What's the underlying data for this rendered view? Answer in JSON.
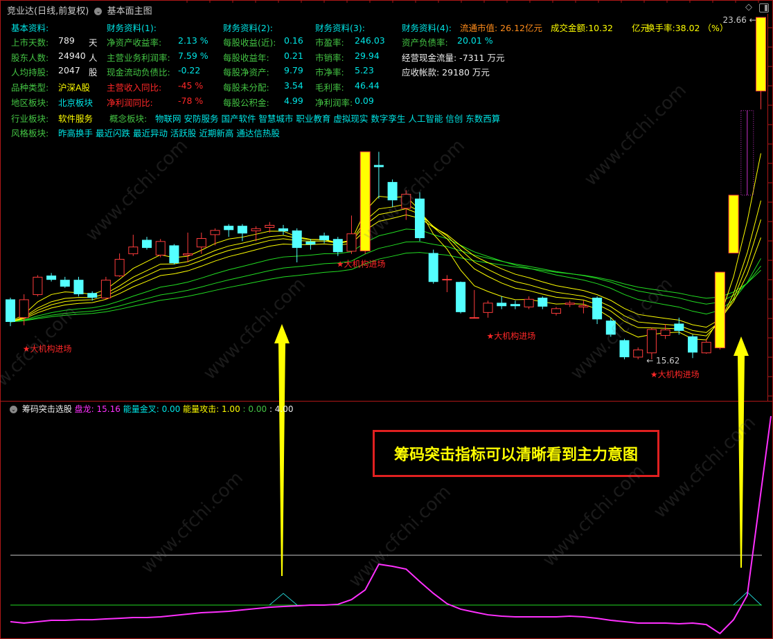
{
  "header": {
    "stock_title": "竞业达(日线,前复权)",
    "template_name": "基本面主图",
    "diamond_icon": "diamond-icon",
    "panel_icon": "panel-toggle-icon"
  },
  "info": {
    "basic": {
      "header": "基本资料:",
      "rows": [
        {
          "label": "上市天数:",
          "value": "789",
          "unit": "天"
        },
        {
          "label": "股东人数:",
          "value": "24940",
          "unit": "人"
        },
        {
          "label": "人均持股:",
          "value": "2047",
          "unit": "股"
        },
        {
          "label": "品种类型:",
          "value": "沪深A股",
          "unit": ""
        },
        {
          "label": "地区板块:",
          "value": "北京板块",
          "unit": ""
        }
      ]
    },
    "fin1": {
      "header": "财务资料(1):",
      "rows": [
        {
          "label": "净资产收益率:",
          "value": "2.13 %"
        },
        {
          "label": "主营业务利润率:",
          "value": "7.59 %"
        },
        {
          "label": "现金流动负债比:",
          "value": "-0.22"
        },
        {
          "label": "主营收入同比:",
          "value": "-45 %"
        },
        {
          "label": "净利润同比:",
          "value": "-78 %"
        }
      ]
    },
    "fin2": {
      "header": "财务资料(2):",
      "rows": [
        {
          "label": "每股收益(近):",
          "value": "0.16"
        },
        {
          "label": "每股收益年:",
          "value": "0.21"
        },
        {
          "label": "每股净资产:",
          "value": "9.79"
        },
        {
          "label": "每股未分配:",
          "value": "3.54"
        },
        {
          "label": "每股公积金:",
          "value": "4.99"
        }
      ]
    },
    "fin3": {
      "header": "财务资料(3):",
      "rows": [
        {
          "label": "市盈率:",
          "value": "246.03"
        },
        {
          "label": "市销率:",
          "value": "29.94"
        },
        {
          "label": "市净率:",
          "value": "5.23"
        },
        {
          "label": "毛利率:",
          "value": "46.44"
        },
        {
          "label": "净利润率:",
          "value": "0.09"
        }
      ]
    },
    "fin4": {
      "header": "财务资料(4):",
      "debt_ratio_label": "资产负债率:",
      "debt_ratio_value": "20.01 %",
      "cashflow": "经营现金流量: -7311 万元",
      "receivables": "应收帐款: 29180 万元"
    },
    "market": {
      "float_cap": "流通市值: 26.12亿元",
      "turnover_amount": "成交金额:10.32",
      "turnover_unit": "亿元",
      "turnover_rate": "换手率:38.02 （%）"
    },
    "industry_label": "行业板块:",
    "industry_value": "软件服务",
    "concept_label": "概念板块:",
    "concept_value": "物联网 安防服务 国产软件 智慧城市 职业教育 虚拟现实 数字孪生 人工智能 信创 东数西算",
    "style_label": "风格板块:",
    "style_value": "昨高换手 最近闪跌 最近异动 活跃股 近期新高 通达信热股"
  },
  "chart_data": [
    {
      "type": "candlestick",
      "ylim": [
        14.66,
        24.07
      ],
      "colors": {
        "up": "#ff3c3c",
        "down": "#54ffff",
        "limit_up": "#ffff00",
        "ma_short": "#ffff00",
        "ma_long": "#22dd22"
      },
      "ema_periods_short": [
        5,
        8,
        10,
        13
      ],
      "ema_periods_long": [
        21,
        30,
        40
      ],
      "candles": [
        {
          "o": 17.03,
          "c": 16.5,
          "h": 17.07,
          "l": 16.4
        },
        {
          "o": 16.61,
          "c": 17.03,
          "h": 17.15,
          "l": 16.42
        },
        {
          "o": 17.15,
          "c": 17.56,
          "h": 17.6,
          "l": 17.1
        },
        {
          "o": 17.59,
          "c": 17.49,
          "h": 17.65,
          "l": 17.45
        },
        {
          "o": 17.49,
          "c": 17.33,
          "h": 17.56,
          "l": 17.3
        },
        {
          "o": 17.49,
          "c": 17.15,
          "h": 17.56,
          "l": 17.1
        },
        {
          "o": 17.18,
          "c": 17.07,
          "h": 17.22,
          "l": 17.0
        },
        {
          "o": 17.07,
          "c": 17.49,
          "h": 17.56,
          "l": 17.03
        },
        {
          "o": 17.59,
          "c": 17.98,
          "h": 18.11,
          "l": 17.56
        },
        {
          "o": 18.11,
          "c": 18.27,
          "h": 18.55,
          "l": 18.05
        },
        {
          "o": 18.43,
          "c": 18.24,
          "h": 18.5,
          "l": 18.2
        },
        {
          "o": 18.08,
          "c": 18.4,
          "h": 18.45,
          "l": 18.02
        },
        {
          "o": 18.3,
          "c": 17.88,
          "h": 18.33,
          "l": 17.85
        },
        {
          "o": 18.08,
          "c": 18.11,
          "h": 18.6,
          "l": 17.9
        },
        {
          "o": 18.27,
          "c": 18.47,
          "h": 18.6,
          "l": 18.1
        },
        {
          "o": 18.56,
          "c": 18.66,
          "h": 18.7,
          "l": 18.3
        },
        {
          "o": 18.76,
          "c": 18.66,
          "h": 18.8,
          "l": 18.5
        },
        {
          "o": 18.76,
          "c": 18.58,
          "h": 18.8,
          "l": 18.4
        },
        {
          "o": 18.65,
          "c": 18.7,
          "h": 18.75,
          "l": 18.4
        },
        {
          "o": 18.73,
          "c": 18.78,
          "h": 18.85,
          "l": 18.6
        },
        {
          "o": 18.7,
          "c": 18.63,
          "h": 18.78,
          "l": 18.55
        },
        {
          "o": 18.65,
          "c": 18.24,
          "h": 18.7,
          "l": 17.9
        },
        {
          "o": 18.39,
          "c": 18.32,
          "h": 18.45,
          "l": 18.2
        },
        {
          "o": 18.53,
          "c": 18.42,
          "h": 18.6,
          "l": 18.35
        },
        {
          "o": 18.45,
          "c": 18.14,
          "h": 18.5,
          "l": 18.05
        },
        {
          "o": 18.17,
          "c": 18.58,
          "h": 19.0,
          "l": 18.1
        },
        {
          "o": 18.17,
          "c": 20.5,
          "h": 20.5,
          "l": 18.1,
          "limit_up": true
        },
        {
          "o": 20.19,
          "c": 20.14,
          "h": 20.5,
          "l": 19.4
        },
        {
          "o": 19.79,
          "c": 19.36,
          "h": 19.85,
          "l": 19.2
        },
        {
          "o": 19.18,
          "c": 19.51,
          "h": 19.6,
          "l": 18.9
        },
        {
          "o": 19.4,
          "c": 18.47,
          "h": 19.55,
          "l": 18.4
        },
        {
          "o": 18.12,
          "c": 17.44,
          "h": 18.2,
          "l": 17.4
        },
        {
          "o": 17.51,
          "c": 17.51,
          "h": 17.6,
          "l": 17.2
        },
        {
          "o": 17.44,
          "c": 16.73,
          "h": 17.45,
          "l": 16.7
        },
        {
          "o": 16.61,
          "c": 16.61,
          "h": 17.25,
          "l": 16.58
        },
        {
          "o": 16.73,
          "c": 16.95,
          "h": 17.0,
          "l": 16.6
        },
        {
          "o": 16.95,
          "c": 16.87,
          "h": 17.1,
          "l": 16.8
        },
        {
          "o": 16.92,
          "c": 16.87,
          "h": 17.0,
          "l": 16.8
        },
        {
          "o": 16.86,
          "c": 17.04,
          "h": 17.1,
          "l": 16.8
        },
        {
          "o": 17.07,
          "c": 16.86,
          "h": 17.1,
          "l": 16.8
        },
        {
          "o": 16.71,
          "c": 16.82,
          "h": 16.85,
          "l": 16.65
        },
        {
          "o": 16.92,
          "c": 16.95,
          "h": 17.0,
          "l": 16.85
        },
        {
          "o": 16.86,
          "c": 16.89,
          "h": 17.0,
          "l": 16.7
        },
        {
          "o": 17.07,
          "c": 16.56,
          "h": 17.1,
          "l": 16.45
        },
        {
          "o": 16.53,
          "c": 16.2,
          "h": 16.6,
          "l": 16.15
        },
        {
          "o": 16.07,
          "c": 15.67,
          "h": 16.1,
          "l": 15.62
        },
        {
          "o": 15.68,
          "c": 15.85,
          "h": 15.9,
          "l": 15.62
        },
        {
          "o": 15.78,
          "c": 16.33,
          "h": 16.36,
          "l": 15.62
        },
        {
          "o": 16.19,
          "c": 16.32,
          "h": 16.45,
          "l": 16.1
        },
        {
          "o": 16.46,
          "c": 16.29,
          "h": 16.6,
          "l": 16.2
        },
        {
          "o": 16.16,
          "c": 15.78,
          "h": 16.2,
          "l": 15.65
        },
        {
          "o": 15.78,
          "c": 16.03,
          "h": 16.1,
          "l": 15.75
        },
        {
          "o": 15.89,
          "c": 17.67,
          "h": 17.67,
          "l": 15.85,
          "limit_up": true
        },
        {
          "o": 18.12,
          "c": 19.48,
          "h": 19.48,
          "l": 18.12,
          "limit_up": true
        },
        {
          "o": 19.48,
          "c": 21.47,
          "h": 21.47,
          "l": 19.48,
          "dashed": true
        },
        {
          "o": 21.93,
          "c": 23.66,
          "h": 23.66,
          "l": 21.5,
          "limit_up": true
        }
      ],
      "price_labels": [
        {
          "text": "23.66",
          "index": 55,
          "price": 23.66
        },
        {
          "text": "15.62",
          "index": 46,
          "price": 15.62
        }
      ],
      "signals": [
        {
          "text": "★大机构进场",
          "index": 1,
          "price": 15.8
        },
        {
          "text": "★大机构进场",
          "index": 24,
          "price": 17.79
        },
        {
          "text": "★大机构进场",
          "index": 35,
          "price": 16.1
        },
        {
          "text": "★大机构进场",
          "index": 47,
          "price": 15.2
        }
      ]
    },
    {
      "type": "line",
      "title": "筹码突击选股",
      "ylim": [
        -2.72,
        16.33
      ],
      "reference_lines": [
        {
          "value": 4.0,
          "color": "#c8c8c8"
        },
        {
          "value": 0.0,
          "color": "#22dd22"
        }
      ],
      "series": [
        {
          "name": "盘龙",
          "color": "#ff30ff",
          "values": [
            -1.33,
            -1.44,
            -1.33,
            -1.22,
            -1.22,
            -1.17,
            -1.17,
            -1.11,
            -1.06,
            -1.0,
            -1.0,
            -0.94,
            -0.83,
            -0.72,
            -0.61,
            -0.56,
            -0.5,
            -0.39,
            -0.28,
            -0.17,
            -0.11,
            -0.06,
            0,
            0,
            0.06,
            0.44,
            1.22,
            3.28,
            3.11,
            2.89,
            1.89,
            0.94,
            0.11,
            -0.33,
            -0.56,
            -0.78,
            -0.89,
            -0.94,
            -0.94,
            -0.94,
            -0.94,
            -0.89,
            -0.94,
            -1.06,
            -1.22,
            -1.33,
            -1.44,
            -1.44,
            -1.44,
            -1.5,
            -1.44,
            -1.56,
            -2.28,
            -1.17,
            0.78,
            15.16
          ]
        }
      ],
      "cross_signals": [
        {
          "index": 20,
          "peak": 0.94
        },
        {
          "index": 54,
          "peak": 1.05
        }
      ],
      "legend": {
        "name": "筹码突击选股",
        "panlong": "盘龙: 15.16",
        "golden_cross": "能量金叉: 0.00",
        "attack": "能量攻击: 1.00",
        "attack2": ": 0.00",
        "attack3": ": 4.00"
      },
      "arrow_indices": [
        20,
        53
      ]
    }
  ],
  "annotation": "筹码突击指标可以清晰看到主力意图",
  "watermark": "www.cfchi.com"
}
